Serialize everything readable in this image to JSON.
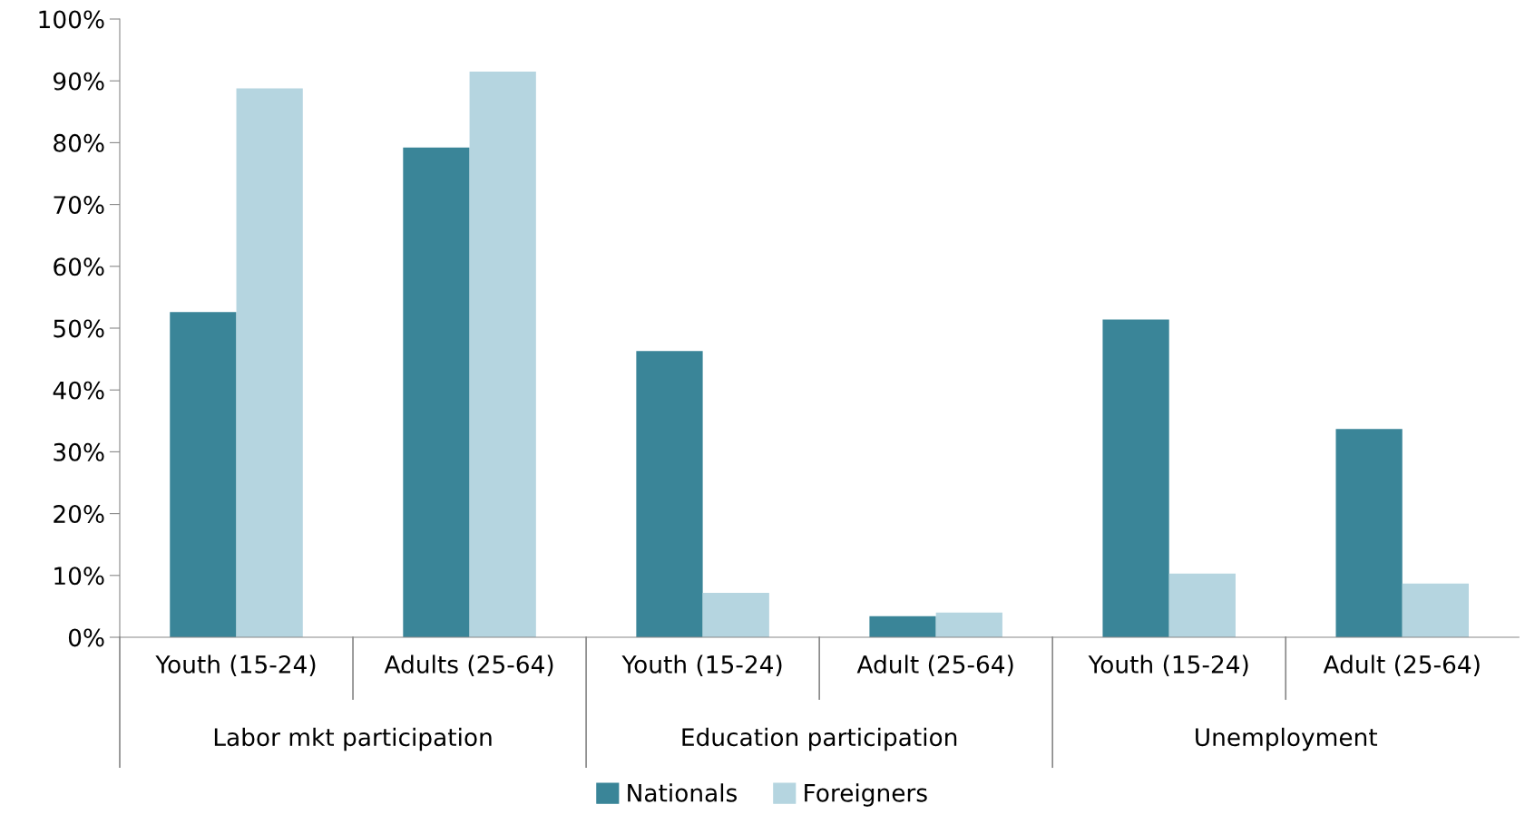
{
  "chart_data": {
    "type": "bar",
    "categories": [
      "Youth (15-24)",
      "Adults (25-64)",
      "Youth (15-24)",
      "Adult (25-64)",
      "Youth (15-24)",
      "Adult (25-64)"
    ],
    "annotations": [
      "Labor mkt participation",
      "Education participation",
      "Unemployment"
    ],
    "series": [
      {
        "name": "Nationals",
        "color": "#3a8598",
        "values": [
          52.6,
          79.2,
          46.3,
          3.4,
          51.4,
          33.7
        ]
      },
      {
        "name": "Foreigners",
        "color": "#b5d5e0",
        "values": [
          88.8,
          91.5,
          7.2,
          4.0,
          10.3,
          8.7
        ]
      }
    ],
    "ylim": [
      0,
      100
    ],
    "yticks": [
      {
        "value": 0,
        "label": "0%"
      },
      {
        "value": 10,
        "label": "10%"
      },
      {
        "value": 20,
        "label": "20%"
      },
      {
        "value": 30,
        "label": "30%"
      },
      {
        "value": 40,
        "label": "40%"
      },
      {
        "value": 50,
        "label": "50%"
      },
      {
        "value": 60,
        "label": "60%"
      },
      {
        "value": 70,
        "label": "70%"
      },
      {
        "value": 80,
        "label": "80%"
      },
      {
        "value": 90,
        "label": "90%"
      },
      {
        "value": 100,
        "label": "100%"
      }
    ],
    "grid": false,
    "legend": "bottom"
  }
}
